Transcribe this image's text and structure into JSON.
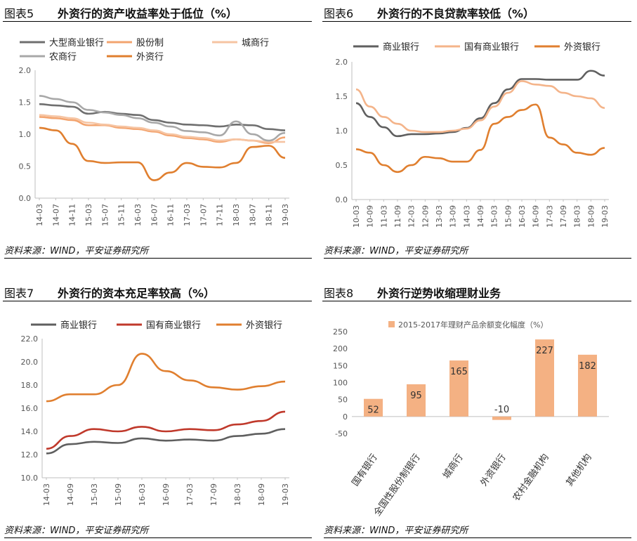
{
  "source_text": "资料来源：WIND，平安证券研究所",
  "colors": {
    "big": "#6f6f6f",
    "joint": "#f3a46f",
    "city": "#f6c4a2",
    "rural": "#a8a8a8",
    "foreign": "#e07f2f",
    "commercial": "#5f5f5f",
    "state": "#f4b48a",
    "red": "#c0392b",
    "bar": "#f4b183",
    "axis": "#bfbfbf",
    "text": "#555555"
  },
  "chart_data": [
    {
      "type": "line",
      "id": "fig5",
      "label": "图表5",
      "title": "外资行的资产收益率处于低位（%）",
      "x": [
        "14-03",
        "14-07",
        "14-11",
        "15-03",
        "15-07",
        "15-11",
        "16-03",
        "16-07",
        "16-11",
        "17-03",
        "17-07",
        "17-11",
        "18-03",
        "18-07",
        "18-11",
        "19-03"
      ],
      "ylim": [
        0.0,
        2.0
      ],
      "yticks": [
        "0.0",
        "0.5",
        "1.0",
        "1.5",
        "2.0"
      ],
      "series": [
        {
          "name": "大型商业银行",
          "color": "big",
          "values": [
            1.47,
            1.45,
            1.43,
            1.32,
            1.35,
            1.32,
            1.3,
            1.22,
            1.18,
            1.15,
            1.14,
            1.12,
            1.15,
            1.14,
            1.08,
            1.06
          ]
        },
        {
          "name": "股份制",
          "color": "joint",
          "values": [
            1.27,
            1.25,
            1.22,
            1.14,
            1.14,
            1.1,
            1.08,
            1.04,
            0.98,
            0.94,
            0.92,
            0.88,
            0.92,
            0.9,
            0.86,
            0.95
          ]
        },
        {
          "name": "城商行",
          "color": "city",
          "values": [
            1.3,
            1.28,
            1.25,
            1.18,
            1.15,
            1.12,
            1.1,
            1.06,
            1.0,
            0.96,
            0.94,
            0.9,
            0.92,
            0.9,
            0.88,
            0.88
          ]
        },
        {
          "name": "农商行",
          "color": "rural",
          "values": [
            1.6,
            1.55,
            1.5,
            1.38,
            1.34,
            1.3,
            1.25,
            1.18,
            1.12,
            1.05,
            1.03,
            0.98,
            1.2,
            1.0,
            0.9,
            1.02
          ]
        },
        {
          "name": "外资行",
          "color": "foreign",
          "values": [
            1.1,
            1.06,
            0.85,
            0.58,
            0.55,
            0.56,
            0.56,
            0.28,
            0.4,
            0.55,
            0.49,
            0.48,
            0.55,
            0.8,
            0.82,
            0.63
          ]
        }
      ]
    },
    {
      "type": "line",
      "id": "fig6",
      "label": "图表6",
      "title": "外资行的不良贷款率较低（%）",
      "x": [
        "10-03",
        "10-09",
        "11-03",
        "11-09",
        "12-03",
        "12-09",
        "13-03",
        "13-09",
        "14-03",
        "14-09",
        "15-03",
        "15-09",
        "16-03",
        "16-09",
        "17-03",
        "17-09",
        "18-03",
        "18-09",
        "19-03"
      ],
      "ylim": [
        0.0,
        2.0
      ],
      "yticks": [
        "0.0",
        "0.5",
        "1.0",
        "1.5",
        "2.0"
      ],
      "series": [
        {
          "name": "商业银行",
          "color": "commercial",
          "values": [
            1.4,
            1.2,
            1.05,
            0.92,
            0.95,
            0.95,
            0.96,
            0.98,
            1.04,
            1.18,
            1.4,
            1.6,
            1.75,
            1.75,
            1.74,
            1.74,
            1.74,
            1.87,
            1.8
          ]
        },
        {
          "name": "国有商业银行",
          "color": "state",
          "values": [
            1.6,
            1.35,
            1.2,
            1.1,
            1.0,
            0.98,
            0.98,
            1.0,
            1.03,
            1.15,
            1.35,
            1.55,
            1.72,
            1.67,
            1.65,
            1.55,
            1.5,
            1.47,
            1.33
          ]
        },
        {
          "name": "外资银行",
          "color": "foreign",
          "values": [
            0.73,
            0.68,
            0.5,
            0.4,
            0.5,
            0.62,
            0.6,
            0.55,
            0.55,
            0.72,
            1.1,
            1.2,
            1.3,
            1.38,
            0.9,
            0.8,
            0.68,
            0.65,
            0.75
          ]
        }
      ]
    },
    {
      "type": "line",
      "id": "fig7",
      "label": "图表7",
      "title": "外资行的资本充足率较高（%）",
      "x": [
        "14-03",
        "14-09",
        "15-03",
        "15-09",
        "16-03",
        "16-09",
        "17-03",
        "17-09",
        "18-03",
        "18-09",
        "19-03"
      ],
      "ylim": [
        10.0,
        22.0
      ],
      "yticks": [
        "10.0",
        "12.0",
        "14.0",
        "16.0",
        "18.0",
        "20.0",
        "22.0"
      ],
      "series": [
        {
          "name": "商业银行",
          "color": "commercial",
          "values": [
            12.1,
            12.9,
            13.1,
            13.0,
            13.4,
            13.2,
            13.3,
            13.2,
            13.6,
            13.8,
            14.2
          ]
        },
        {
          "name": "国有商业银行",
          "color": "red",
          "values": [
            12.5,
            13.6,
            14.2,
            14.0,
            14.4,
            14.0,
            14.2,
            14.1,
            14.6,
            14.9,
            15.7
          ]
        },
        {
          "name": "外资银行",
          "color": "foreign",
          "values": [
            16.6,
            17.2,
            17.2,
            18.0,
            20.7,
            19.2,
            18.4,
            17.8,
            17.6,
            17.9,
            18.3
          ]
        }
      ]
    },
    {
      "type": "bar",
      "id": "fig8",
      "label": "图表8",
      "title": "外资行逆势收缩理财业务",
      "legend": "2015-2017年理财产品余额变化幅度（%）",
      "categories": [
        "国有银行",
        "全国性股份制银行",
        "城商行",
        "外资银行",
        "农村金融机构",
        "其他机构"
      ],
      "values": [
        52,
        95,
        165,
        -10,
        227,
        182
      ],
      "labels": [
        "52",
        "95",
        "165",
        "-10",
        "227",
        "182"
      ],
      "ylim": [
        -50,
        250
      ],
      "yticks": [
        "-50",
        "0",
        "50",
        "100",
        "150",
        "200",
        "250"
      ]
    }
  ]
}
